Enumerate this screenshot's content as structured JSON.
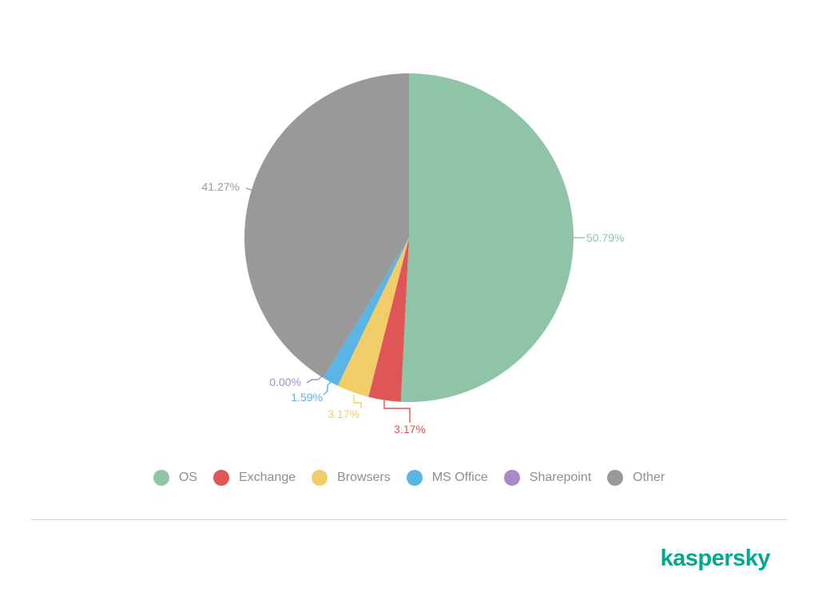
{
  "chart_data": {
    "type": "pie",
    "title": "",
    "slices": [
      {
        "name": "OS",
        "value": 50.79,
        "label": "50.79%",
        "color": "#8fc4a8"
      },
      {
        "name": "Exchange",
        "value": 3.17,
        "label": "3.17%",
        "color": "#e05656"
      },
      {
        "name": "Browsers",
        "value": 3.17,
        "label": "3.17%",
        "color": "#f1cd6a"
      },
      {
        "name": "MS Office",
        "value": 1.59,
        "label": "1.59%",
        "color": "#5ab4e6"
      },
      {
        "name": "Sharepoint",
        "value": 0.0,
        "label": "0.00%",
        "color": "#a98ac8"
      },
      {
        "name": "Other",
        "value": 41.27,
        "label": "41.27%",
        "color": "#999999"
      }
    ],
    "legend_position": "bottom"
  },
  "legend": {
    "items": [
      {
        "label": "OS",
        "color": "#8fc4a8"
      },
      {
        "label": "Exchange",
        "color": "#e05656"
      },
      {
        "label": "Browsers",
        "color": "#f1cd6a"
      },
      {
        "label": "MS Office",
        "color": "#5ab4e6"
      },
      {
        "label": "Sharepoint",
        "color": "#a98ac8"
      },
      {
        "label": "Other",
        "color": "#999999"
      }
    ]
  },
  "brand": {
    "name": "kaspersky",
    "color": "#00a88e"
  }
}
